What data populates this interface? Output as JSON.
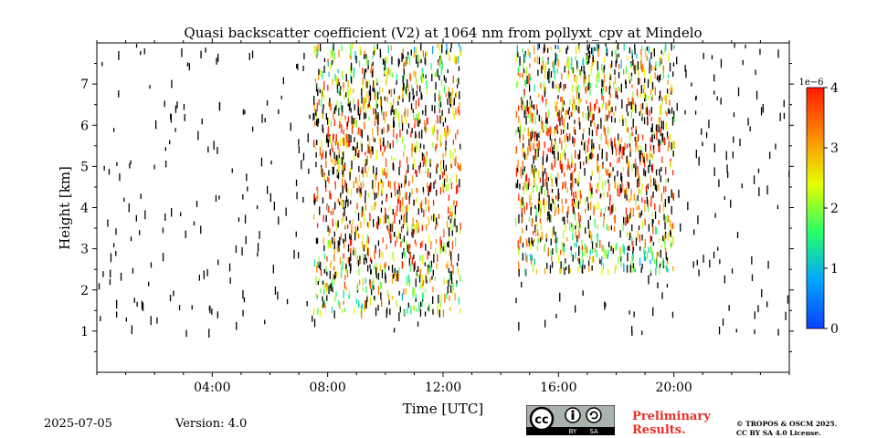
{
  "chart_data": {
    "type": "heatmap",
    "title": "Quasi backscatter coefficient (V2) at 1064 nm from pollyxt_cpv at Mindelo",
    "xlabel": "Time [UTC]",
    "ylabel": "Height [km]",
    "x_ticks": [
      "04:00",
      "08:00",
      "12:00",
      "16:00",
      "20:00"
    ],
    "y_ticks": [
      "1",
      "2",
      "3",
      "4",
      "5",
      "6",
      "7"
    ],
    "xlim_hours": [
      0,
      24
    ],
    "ylim_km": [
      0,
      8
    ],
    "data_gap_hours": [
      12.6,
      14.5
    ],
    "colorbar": {
      "offset_label": "1e−6",
      "ticks": [
        "0",
        "1",
        "2",
        "3",
        "4"
      ],
      "range": [
        0,
        4e-06
      ],
      "colormap": "jet"
    },
    "features": [
      {
        "time_range_hours": [
          7.5,
          12.6
        ],
        "height_range_km": [
          1.5,
          8.0
        ],
        "value_range": [
          1e-06,
          4e-06
        ]
      },
      {
        "time_range_hours": [
          14.5,
          20.0
        ],
        "height_range_km": [
          2.5,
          8.0
        ],
        "value_range": [
          1e-06,
          4e-06
        ]
      }
    ]
  },
  "footer": {
    "date": "2025-07-05",
    "version": "Version: 4.0",
    "preliminary": [
      "Preliminary",
      "Results."
    ],
    "license": [
      "© TROPOS & OSCM 2025.",
      "CC BY SA 4.0 License."
    ]
  },
  "badge": {
    "cc": "cc",
    "by": "BY",
    "sa": "SA"
  },
  "colors": {
    "preliminary_text": "#e8302a",
    "badge_bg": "#aab2ab",
    "badge_dark": "#000000"
  }
}
